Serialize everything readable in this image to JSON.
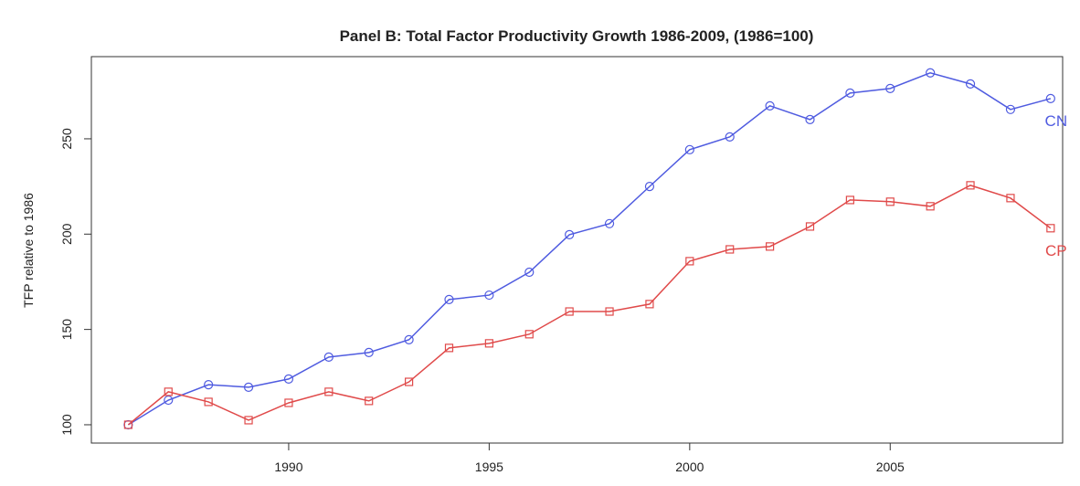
{
  "chart_data": {
    "type": "line",
    "title": "Panel B: Total Factor Productivity Growth 1986-2009, (1986=100)",
    "y_label": "TFP relative to 1986",
    "x": [
      1986,
      1987,
      1988,
      1989,
      1990,
      1991,
      1992,
      1993,
      1994,
      1995,
      1996,
      1997,
      1998,
      1999,
      2000,
      2001,
      2002,
      2003,
      2004,
      2005,
      2006,
      2007,
      2008,
      2009
    ],
    "series": [
      {
        "name": "CN",
        "color": "#4f5be0",
        "marker": "circle",
        "values": [
          100,
          112.9,
          121,
          119.7,
          124,
          135.5,
          137.9,
          144.6,
          165.7,
          168,
          180,
          199.7,
          205.5,
          225,
          244.3,
          251,
          267.3,
          260.1,
          274,
          276.4,
          284.6,
          278.8,
          265.4,
          271.1
        ]
      },
      {
        "name": "CP",
        "color": "#e04a4a",
        "marker": "square",
        "values": [
          100,
          117.3,
          112,
          102.4,
          111.5,
          117.3,
          112.5,
          122.5,
          140.3,
          142.7,
          147.5,
          159.4,
          159.4,
          163.3,
          185.8,
          192,
          193.5,
          204,
          217.9,
          217,
          214.6,
          225.6,
          218.9,
          203.1
        ]
      }
    ],
    "xlim": [
      1985.08,
      2009.3
    ],
    "ylim": [
      90.4,
      293.1
    ],
    "xticks": [
      1990,
      1995,
      2000,
      2005
    ],
    "yticks": [
      100,
      150,
      200,
      250
    ],
    "grid": false
  }
}
